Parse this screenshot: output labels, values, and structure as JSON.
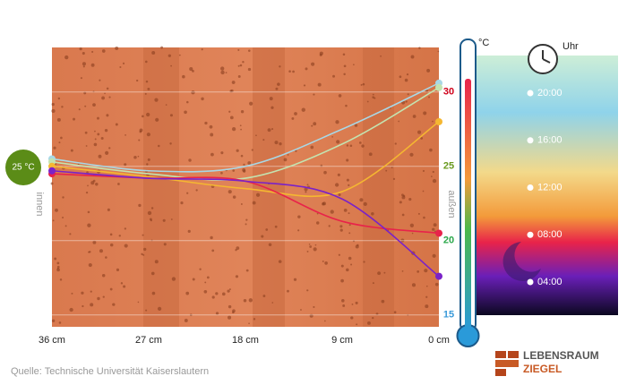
{
  "chart_data": {
    "type": "line",
    "y_unit": "°C",
    "annotation_inside_temp": "25 °C",
    "label_inside": "innen",
    "label_outside": "außen",
    "legend_title": "Uhr",
    "source": "Quelle: Technische Universität Kaiserslautern",
    "logo_line1": "LEBENSRAUM",
    "logo_line2": "ZIEGEL",
    "x": [
      36,
      27,
      18,
      9,
      0
    ],
    "xlim": [
      36,
      0
    ],
    "xticks": [
      {
        "value": 36,
        "label": "36 cm"
      },
      {
        "value": 27,
        "label": "27 cm"
      },
      {
        "value": 18,
        "label": "18 cm"
      },
      {
        "value": 9,
        "label": "9 cm"
      },
      {
        "value": 0,
        "label": "0 cm"
      }
    ],
    "ylim": [
      14.2,
      33
    ],
    "yticks": [
      15,
      20,
      25,
      30
    ],
    "ytick_colors": [
      "#3a9ad9",
      "#2aa84a",
      "#6a9a1f",
      "#d0021b"
    ],
    "grid": true,
    "series": [
      {
        "name": "20:00",
        "color": "#a8d8e6",
        "values": [
          25.5,
          24.7,
          25.0,
          27.5,
          30.6
        ]
      },
      {
        "name": "16:00",
        "color": "#c4e3b0",
        "values": [
          25.3,
          24.5,
          24.2,
          26.5,
          30.3
        ]
      },
      {
        "name": "12:00",
        "color": "#f5b731",
        "values": [
          25.0,
          24.3,
          23.5,
          23.3,
          28.0
        ]
      },
      {
        "name": "08:00",
        "color": "#e8234a",
        "values": [
          24.5,
          24.2,
          24.0,
          21.3,
          20.5
        ]
      },
      {
        "name": "04:00",
        "color": "#7a22c8",
        "values": [
          24.7,
          24.2,
          24.0,
          22.8,
          17.6
        ]
      }
    ]
  }
}
